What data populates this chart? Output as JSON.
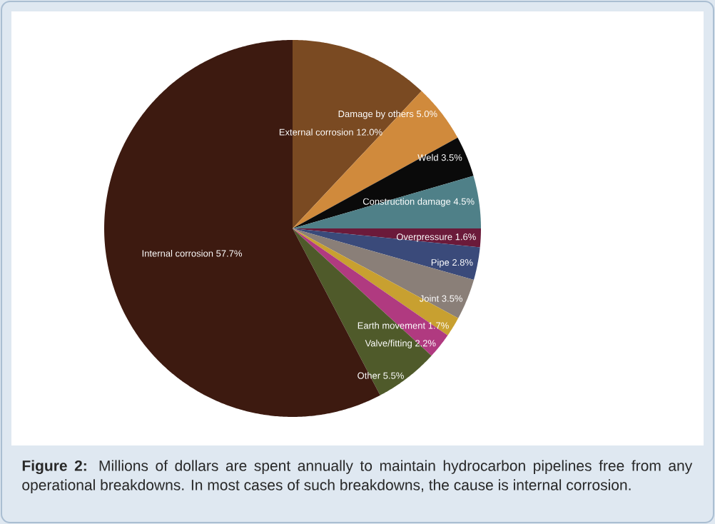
{
  "chart_data": {
    "type": "pie",
    "categories": [
      "External corrosion",
      "Damage by others",
      "Weld",
      "Construction damage",
      "Overpressure",
      "Pipe",
      "Joint",
      "Earth movement",
      "Valve/fitting",
      "Other",
      "Internal corrosion"
    ],
    "values": [
      12.0,
      5.0,
      3.5,
      4.5,
      1.6,
      2.8,
      3.5,
      1.7,
      2.2,
      5.5,
      57.7
    ],
    "value_labels": [
      "12.0%",
      "5.0%",
      "3.5%",
      "4.5%",
      "1.6%",
      "2.8%",
      "3.5%",
      "1.7%",
      "2.2%",
      "5.5%",
      "57.7%"
    ],
    "colors": [
      "#7a4a22",
      "#d08a3c",
      "#0a0a0a",
      "#4f8088",
      "#6b1a3a",
      "#3a4a7a",
      "#8a7f78",
      "#c8a030",
      "#b03a80",
      "#4f5a2a",
      "#3d1a10"
    ],
    "annotations": [
      "**Figure 2:** Millions of dollars are spent annually to maintain hydrocarbon pipelines free from any operational breakdowns. In most cases of such breakdowns, the cause is internal corrosion."
    ]
  }
}
